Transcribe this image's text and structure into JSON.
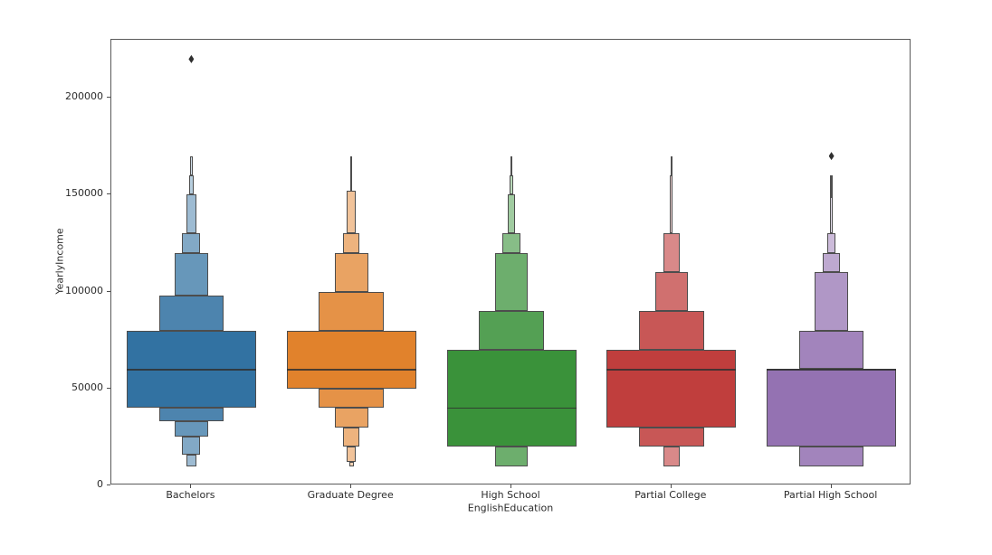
{
  "figure": {
    "background": "#ffffff"
  },
  "chart_data": {
    "type": "boxen",
    "title": "",
    "xlabel": "EnglishEducation",
    "ylabel": "YearlyIncome",
    "grid": false,
    "legend": null,
    "ylim": [
      0,
      230000
    ],
    "yticks": [
      0,
      50000,
      100000,
      150000,
      200000
    ],
    "ytick_labels": [
      "0",
      "50000",
      "100000",
      "150000",
      "200000"
    ],
    "categories": [
      "Bachelors",
      "Graduate Degree",
      "High School",
      "Partial College",
      "Partial High School"
    ],
    "edge_color": "#4d4d4d",
    "median_color": "#303030",
    "outlier_color": "#2f2f2f",
    "tick_color": "#4d4d4d",
    "text_color": "#2b2b2b",
    "series": [
      {
        "name": "Bachelors",
        "color": "#3272a2",
        "median": 60000,
        "outliers": [
          220000
        ],
        "boxes": [
          {
            "lo": 40000,
            "hi": 80000,
            "w": 1.0
          },
          {
            "lo": 80000,
            "hi": 98000,
            "w": 0.5
          },
          {
            "lo": 33000,
            "hi": 40000,
            "w": 0.5
          },
          {
            "lo": 98000,
            "hi": 120000,
            "w": 0.26
          },
          {
            "lo": 25000,
            "hi": 33000,
            "w": 0.26
          },
          {
            "lo": 120000,
            "hi": 130000,
            "w": 0.14
          },
          {
            "lo": 16000,
            "hi": 25000,
            "w": 0.14
          },
          {
            "lo": 130000,
            "hi": 150000,
            "w": 0.08
          },
          {
            "lo": 10000,
            "hi": 16000,
            "w": 0.08
          },
          {
            "lo": 150000,
            "hi": 160000,
            "w": 0.035
          },
          {
            "lo": 160000,
            "hi": 170000,
            "w": 0.018
          }
        ]
      },
      {
        "name": "Graduate Degree",
        "color": "#e1822c",
        "median": 60000,
        "outliers": [],
        "boxes": [
          {
            "lo": 50000,
            "hi": 80000,
            "w": 1.0
          },
          {
            "lo": 80000,
            "hi": 100000,
            "w": 0.5
          },
          {
            "lo": 40000,
            "hi": 50000,
            "w": 0.5
          },
          {
            "lo": 100000,
            "hi": 120000,
            "w": 0.26
          },
          {
            "lo": 30000,
            "hi": 40000,
            "w": 0.26
          },
          {
            "lo": 120000,
            "hi": 130000,
            "w": 0.13
          },
          {
            "lo": 20000,
            "hi": 30000,
            "w": 0.13
          },
          {
            "lo": 130000,
            "hi": 152000,
            "w": 0.07
          },
          {
            "lo": 12000,
            "hi": 20000,
            "w": 0.07
          },
          {
            "lo": 10000,
            "hi": 12000,
            "w": 0.035
          },
          {
            "lo": 152000,
            "hi": 170000,
            "w": 0.018
          }
        ]
      },
      {
        "name": "High School",
        "color": "#3a923a",
        "median": 40000,
        "outliers": [],
        "boxes": [
          {
            "lo": 20000,
            "hi": 70000,
            "w": 1.0
          },
          {
            "lo": 70000,
            "hi": 90000,
            "w": 0.5
          },
          {
            "lo": 90000,
            "hi": 120000,
            "w": 0.25
          },
          {
            "lo": 10000,
            "hi": 20000,
            "w": 0.25
          },
          {
            "lo": 120000,
            "hi": 130000,
            "w": 0.14
          },
          {
            "lo": 130000,
            "hi": 150000,
            "w": 0.06
          },
          {
            "lo": 150000,
            "hi": 160000,
            "w": 0.03
          },
          {
            "lo": 160000,
            "hi": 170000,
            "w": 0.012,
            "dark": true
          }
        ]
      },
      {
        "name": "Partial College",
        "color": "#c03e3d",
        "median": 60000,
        "outliers": [],
        "boxes": [
          {
            "lo": 30000,
            "hi": 70000,
            "w": 1.0
          },
          {
            "lo": 70000,
            "hi": 90000,
            "w": 0.5
          },
          {
            "lo": 20000,
            "hi": 30000,
            "w": 0.5
          },
          {
            "lo": 90000,
            "hi": 110000,
            "w": 0.25
          },
          {
            "lo": 110000,
            "hi": 130000,
            "w": 0.125
          },
          {
            "lo": 10000,
            "hi": 20000,
            "w": 0.125
          },
          {
            "lo": 130000,
            "hi": 160000,
            "w": 0.02
          },
          {
            "lo": 160000,
            "hi": 170000,
            "w": 0.012,
            "dark": true
          }
        ]
      },
      {
        "name": "Partial High School",
        "color": "#9472b2",
        "median": 60000,
        "outliers": [
          170000
        ],
        "boxes": [
          {
            "lo": 20000,
            "hi": 60000,
            "w": 1.0
          },
          {
            "lo": 60000,
            "hi": 80000,
            "w": 0.5
          },
          {
            "lo": 10000,
            "hi": 20000,
            "w": 0.5
          },
          {
            "lo": 80000,
            "hi": 110000,
            "w": 0.26
          },
          {
            "lo": 110000,
            "hi": 120000,
            "w": 0.13
          },
          {
            "lo": 120000,
            "hi": 130000,
            "w": 0.06
          },
          {
            "lo": 130000,
            "hi": 149000,
            "w": 0.02
          },
          {
            "lo": 149000,
            "hi": 160000,
            "w": 0.012,
            "dark": true
          }
        ]
      }
    ]
  }
}
